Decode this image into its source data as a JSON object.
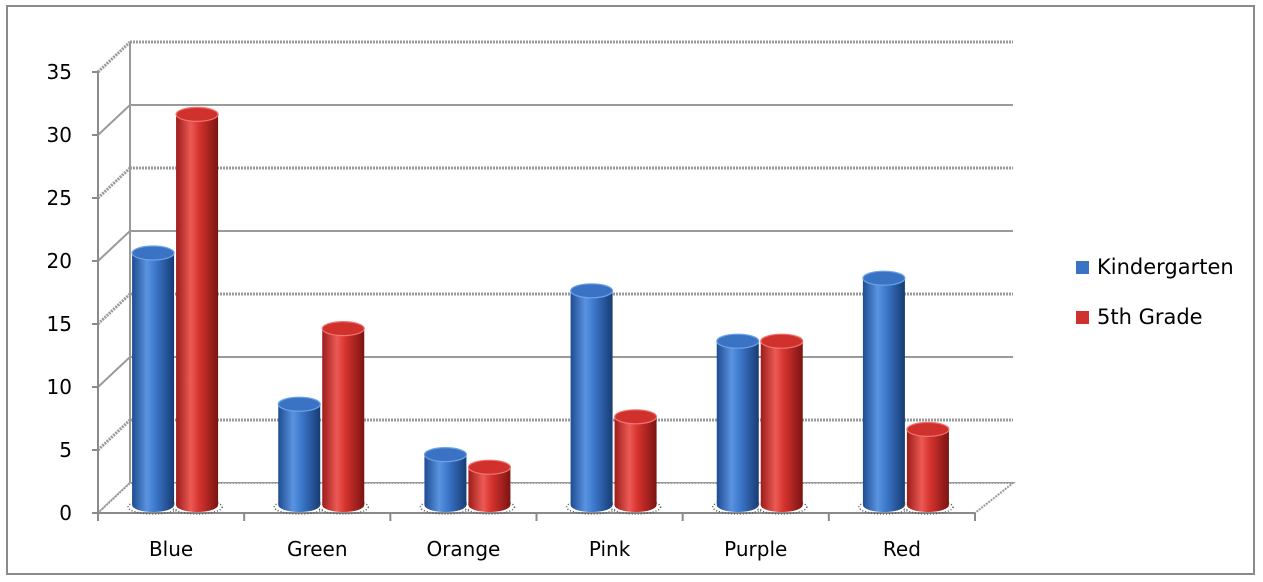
{
  "chart_data": {
    "type": "bar",
    "categories": [
      "Blue",
      "Green",
      "Orange",
      "Pink",
      "Purple",
      "Red"
    ],
    "series": [
      {
        "name": "Kindergarten",
        "values": [
          20,
          8,
          4,
          17,
          13,
          18
        ],
        "color": "#3a73c4"
      },
      {
        "name": "5th Grade",
        "values": [
          31,
          14,
          3,
          7,
          13,
          6
        ],
        "color": "#d0312d"
      }
    ],
    "yticks": [
      "0",
      "5",
      "10",
      "15",
      "20",
      "25",
      "30",
      "35"
    ],
    "ylim": [
      0,
      35
    ],
    "grid": true,
    "legend_position": "right",
    "style": "3d-cylinder"
  }
}
